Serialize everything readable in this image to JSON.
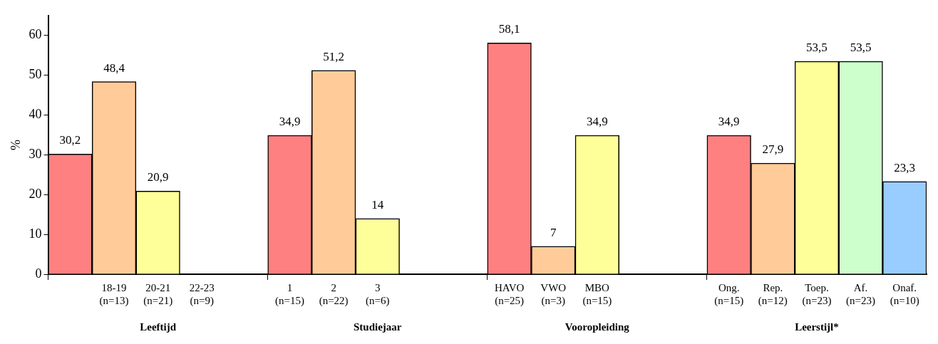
{
  "chart_data": {
    "type": "bar",
    "ylabel": "%",
    "categories": [
      null,
      "18-19\n(n=13)",
      "20-21\n(n=21)",
      "22-23\n(n=9)",
      null,
      "1\n(n=15)",
      "2\n(n=22)",
      "3\n(n=6)",
      null,
      null,
      "HAVO\n(n=25)",
      "VWO\n(n=3)",
      "MBO\n(n=15)",
      null,
      null,
      "Ong.\n(n=15)",
      "Rep.\n(n=12)",
      "Toep.\n(n=23)",
      "Af.\n(n=23)",
      "Onaf.\n(n=10)"
    ],
    "values": [
      30.2,
      48.4,
      20.9,
      null,
      null,
      34.9,
      51.2,
      14,
      null,
      null,
      58.1,
      7,
      34.9,
      null,
      null,
      34.9,
      27.9,
      53.5,
      53.5,
      23.3
    ],
    "value_labels": [
      "30,2",
      "48,4",
      "20,9",
      null,
      null,
      "34,9",
      "51,2",
      "14",
      null,
      null,
      "58,1",
      "7",
      "34,9",
      null,
      null,
      "34,9",
      "27,9",
      "53,5",
      "53,5",
      "23,3"
    ],
    "colors": [
      "#ff8080",
      "#ffcc99",
      "#ffff99",
      null,
      null,
      "#ff8080",
      "#ffcc99",
      "#ffff99",
      null,
      null,
      "#ff8080",
      "#ffcc99",
      "#ffff99",
      null,
      null,
      "#ff8080",
      "#ffcc99",
      "#ffff99",
      "#ccffcc",
      "#99ccff"
    ],
    "annotations": [
      "Leeftijd",
      "Studiejaar",
      "Vooropleiding",
      "Leerstijl*"
    ],
    "ylim": [
      0,
      65
    ],
    "yticks": [
      0,
      10,
      20,
      30,
      40,
      50,
      60
    ],
    "grid": false,
    "legend": false
  }
}
